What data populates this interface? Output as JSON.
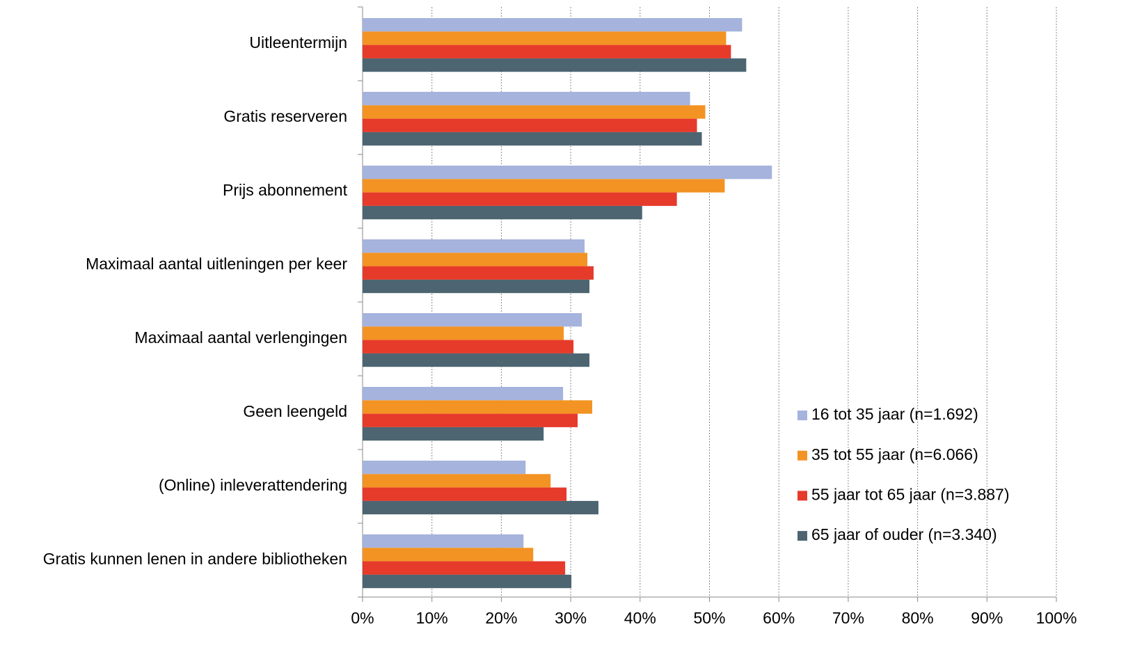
{
  "chart_data": {
    "type": "hbar",
    "categories": [
      "Uitleentermijn",
      "Gratis reserveren",
      "Prijs abonnement",
      "Maximaal aantal uitleningen per keer",
      "Maximaal aantal verlengingen",
      "Geen leengeld",
      "(Online) inleverattendering",
      "Gratis kunnen lenen in andere bibliotheken"
    ],
    "series": [
      {
        "name": "16 tot 35 jaar (n=1.692)",
        "color": "#a5b3dd",
        "values": [
          54.7,
          47.2,
          59.0,
          32.0,
          31.6,
          28.9,
          23.5,
          23.2
        ]
      },
      {
        "name": "35 tot 55 jaar (n=6.066)",
        "color": "#f39323",
        "values": [
          52.4,
          49.4,
          52.2,
          32.4,
          29.0,
          33.1,
          27.1,
          24.6
        ]
      },
      {
        "name": "55 jaar tot 65 jaar (n=3.887)",
        "color": "#e63a2b",
        "values": [
          53.1,
          48.2,
          45.3,
          33.3,
          30.4,
          31.0,
          29.4,
          29.2
        ]
      },
      {
        "name": "65 jaar of ouder (n=3.340)",
        "color": "#4d6571",
        "values": [
          55.3,
          48.9,
          40.3,
          32.7,
          32.7,
          26.1,
          34.0,
          30.1
        ]
      }
    ],
    "xlim": [
      0,
      100
    ],
    "xticks": [
      {
        "value": 0,
        "label": "0%"
      },
      {
        "value": 10,
        "label": "10%"
      },
      {
        "value": 20,
        "label": "20%"
      },
      {
        "value": 30,
        "label": "30%"
      },
      {
        "value": 40,
        "label": "40%"
      },
      {
        "value": 50,
        "label": "50%"
      },
      {
        "value": 60,
        "label": "60%"
      },
      {
        "value": 70,
        "label": "70%"
      },
      {
        "value": 80,
        "label": "80%"
      },
      {
        "value": 90,
        "label": "90%"
      },
      {
        "value": 100,
        "label": "100%"
      }
    ],
    "grid": true,
    "legend": "right"
  }
}
